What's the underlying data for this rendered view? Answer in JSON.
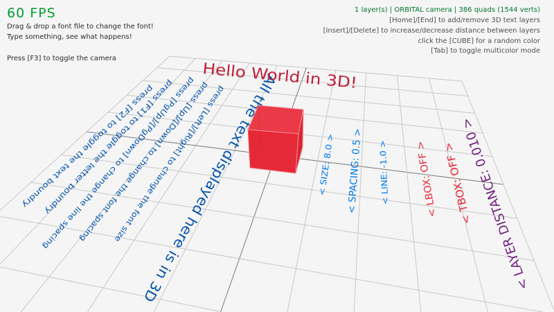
{
  "hud": {
    "fps": "60 FPS",
    "help_left": [
      "Drag & drop a font file to change the font!",
      "Type something, see what happens!",
      "Press [F3] to toggle the camera"
    ],
    "status": "1 layer(s) | ORBITAL camera |  386 quads (1544 verts)",
    "help_right": [
      "[Home]/[End] to add/remove 3D text layers",
      "[Insert]/[Delete] to increase/decrease distance between layers",
      "click the [CUBE] for a random color",
      "[Tab] to toggle multicolor mode"
    ]
  },
  "scene": {
    "title_3d": "Hello World in 3D!",
    "big_text": "All the text displayed here is in 3D",
    "instructions": [
      "press [F2] to toggle the text boundry",
      "press [F1] to toggle the letter boundry",
      "press [PgUp]/[PgDown] to change the line spacing",
      "press [Up]/[Down] to change the font spacing",
      "press [Left]/[Right] to change the font size"
    ],
    "options": [
      {
        "label": "< SIZE: 8.0 >",
        "color": "#0079f1"
      },
      {
        "label": "< SPACING: 0.5 >",
        "color": "#0079f1"
      },
      {
        "label": "< LINE: -1.0 >",
        "color": "#0079f1"
      },
      {
        "label": "< LBOX: OFF >",
        "color": "#e62937"
      },
      {
        "label": "< TBOX: OFF >",
        "color": "#e62937"
      },
      {
        "label": "< LAYER DISTANCE: 0.010 >",
        "color": "#701f7e"
      }
    ]
  },
  "colors": {
    "background": "#f5f5f5",
    "fps": "#009e2f",
    "status": "#00752c",
    "title_3d": "#be2137",
    "instructions": "#0052ac",
    "cube": "#e62937",
    "cube_wires": "#be2137",
    "grid": "#c8c8c8",
    "grid_axis": "#828282"
  }
}
